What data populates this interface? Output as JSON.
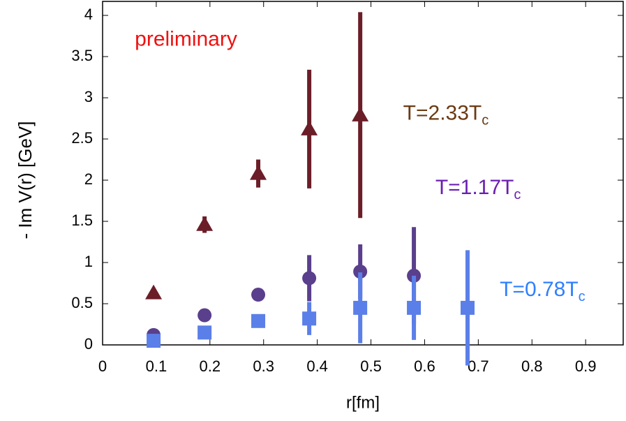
{
  "chart_data": {
    "type": "scatter",
    "y_label": "- Im V(r) [GeV]",
    "x_label": "r[fm]",
    "annotation": {
      "text": "preliminary",
      "color": "#ee1111",
      "x": 0.06,
      "y": 3.7
    },
    "xlim": [
      0,
      0.97
    ],
    "ylim": [
      0,
      4.17
    ],
    "xticks": [
      0,
      0.1,
      0.2,
      0.3,
      0.4,
      0.5,
      0.6,
      0.7,
      0.8,
      0.9
    ],
    "yticks": [
      0,
      0.5,
      1,
      1.5,
      2,
      2.5,
      3,
      3.5,
      4
    ],
    "grid": false,
    "series": [
      {
        "name": "T=2.33T",
        "subscript": "c",
        "color": "#6b1e28",
        "label_color": "#6b3a12",
        "marker": "triangle",
        "label_x": 0.56,
        "label_y": 2.8,
        "x": [
          0.095,
          0.19,
          0.29,
          0.385,
          0.48
        ],
        "values": [
          0.63,
          1.46,
          2.08,
          2.62,
          2.79
        ],
        "errors": [
          0.03,
          0.1,
          0.17,
          0.72,
          1.25
        ]
      },
      {
        "name": "T=1.17T",
        "subscript": "c",
        "color": "#5a3f8c",
        "label_color": "#6a1fb0",
        "marker": "circle",
        "label_x": 0.62,
        "label_y": 1.9,
        "x": [
          0.095,
          0.19,
          0.29,
          0.385,
          0.48,
          0.58
        ],
        "values": [
          0.12,
          0.36,
          0.61,
          0.81,
          0.89,
          0.84
        ],
        "errors": [
          0.03,
          0.04,
          0.05,
          0.28,
          0.33,
          0.59
        ]
      },
      {
        "name": "T=0.78T",
        "subscript": "c",
        "color": "#5b7fe8",
        "label_color": "#2f7fff",
        "marker": "square",
        "label_x": 0.74,
        "label_y": 0.66,
        "x": [
          0.095,
          0.19,
          0.29,
          0.385,
          0.48,
          0.58,
          0.68
        ],
        "values": [
          0.05,
          0.15,
          0.29,
          0.32,
          0.45,
          0.45,
          0.45
        ],
        "errors": [
          0.02,
          0.03,
          0.04,
          0.2,
          0.43,
          0.39,
          0.7
        ]
      }
    ]
  }
}
